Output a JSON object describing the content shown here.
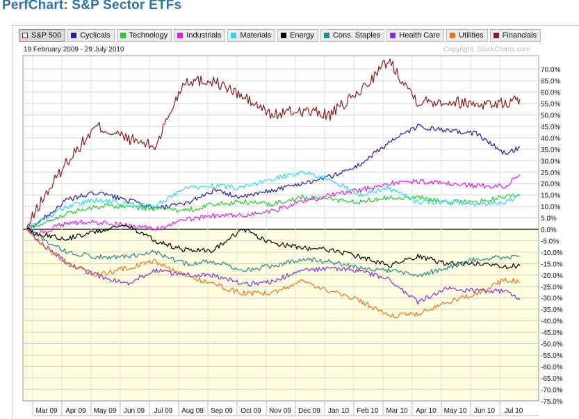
{
  "page": {
    "title": "PerfChart: S&P Sector ETFs"
  },
  "header": {
    "date_range": "19 February 2009 - 29 July 2010",
    "copyright": "Copyright, StockCharts.com"
  },
  "legend": [
    {
      "label": "S&P 500",
      "color": "#8b1a1a",
      "hollow": true,
      "active": true
    },
    {
      "label": "Cyclicals",
      "color": "#2a1aa8"
    },
    {
      "label": "Technology",
      "color": "#22cc22"
    },
    {
      "label": "Industrials",
      "color": "#e01be0"
    },
    {
      "label": "Materials",
      "color": "#22ddee"
    },
    {
      "label": "Energy",
      "color": "#000000"
    },
    {
      "label": "Cons. Staples",
      "color": "#1f8a8a"
    },
    {
      "label": "Health Care",
      "color": "#8a2be2"
    },
    {
      "label": "Utilities",
      "color": "#e8741a"
    },
    {
      "label": "Financials",
      "color": "#8b1a1a"
    }
  ],
  "chart_data": {
    "type": "line",
    "title": "PerfChart: S&P Sector ETFs",
    "subtitle": "19 February 2009 - 29 July 2010",
    "xlabel": "",
    "ylabel": "",
    "x_tick_labels": [
      "Mar 09",
      "Apr 09",
      "May 09",
      "Jun 09",
      "Jul 09",
      "Aug 09",
      "Sep 09",
      "Oct 09",
      "Nov 09",
      "Dec 09",
      "Jan 10",
      "Feb 10",
      "Mar 10",
      "Apr 10",
      "May 10",
      "Jun 10",
      "Jul 10"
    ],
    "y_tick_labels": [
      "70.0%",
      "65.0%",
      "60.0%",
      "55.0%",
      "50.0%",
      "45.0%",
      "40.0%",
      "35.0%",
      "30.0%",
      "25.0%",
      "20.0%",
      "15.0%",
      "10.0%",
      "5.0%",
      "0.0%",
      "-5.0%",
      "-10.0%",
      "-15.0%",
      "-20.0%",
      "-25.0%",
      "-30.0%",
      "-35.0%",
      "-40.0%",
      "-45.0%",
      "-50.0%",
      "-55.0%",
      "-60.0%",
      "-65.0%",
      "-70.0%",
      "-75.0%"
    ],
    "ylim": [
      -77,
      77
    ],
    "grid": true,
    "legend_position": "top",
    "x_months": [
      -0.4,
      0,
      1,
      2,
      3,
      4,
      5,
      6,
      7,
      8,
      9,
      10,
      11,
      12,
      13,
      14,
      15,
      16,
      16.5
    ],
    "series": [
      {
        "name": "Financials",
        "color": "#8b1a1a",
        "values": [
          0,
          10,
          30,
          45,
          40,
          36,
          65,
          65,
          58,
          50,
          52,
          50,
          60,
          74,
          56,
          56,
          55,
          55,
          57
        ]
      },
      {
        "name": "Cyclicals",
        "color": "#2a1aa8",
        "values": [
          0,
          3,
          13,
          16,
          13,
          9,
          11,
          17,
          14,
          17,
          20,
          23,
          28,
          38,
          45,
          43,
          42,
          33,
          36
        ]
      },
      {
        "name": "Technology",
        "color": "#22cc22",
        "values": [
          0,
          2,
          7,
          10,
          10,
          9,
          8,
          11,
          12,
          11,
          14,
          13,
          12,
          14,
          14,
          12,
          12,
          14,
          15
        ]
      },
      {
        "name": "Industrials",
        "color": "#e01be0",
        "values": [
          0,
          -2,
          3,
          3,
          2,
          0,
          4,
          6,
          6,
          8,
          12,
          15,
          17,
          20,
          21,
          20,
          19,
          19,
          24
        ]
      },
      {
        "name": "Materials",
        "color": "#22ddee",
        "values": [
          0,
          3,
          10,
          13,
          11,
          10,
          18,
          19,
          18,
          22,
          25,
          22,
          15,
          18,
          12,
          12,
          11,
          12,
          15
        ]
      },
      {
        "name": "Energy",
        "color": "#000000",
        "values": [
          0,
          -2,
          -4,
          -1,
          2,
          -5,
          -9,
          -9,
          0,
          -6,
          -8,
          -9,
          -12,
          -16,
          -12,
          -15,
          -15,
          -16,
          -16
        ]
      },
      {
        "name": "Cons. Staples",
        "color": "#1f8a8a",
        "values": [
          0,
          -3,
          -10,
          -12,
          -12,
          -10,
          -15,
          -14,
          -18,
          -16,
          -13,
          -14,
          -17,
          -18,
          -20,
          -17,
          -13,
          -12,
          -12
        ]
      },
      {
        "name": "Health Care",
        "color": "#8a2be2",
        "values": [
          0,
          -5,
          -15,
          -20,
          -24,
          -18,
          -20,
          -20,
          -24,
          -23,
          -18,
          -17,
          -18,
          -22,
          -32,
          -26,
          -27,
          -27,
          -31
        ]
      },
      {
        "name": "Utilities",
        "color": "#e8741a",
        "values": [
          0,
          -5,
          -15,
          -20,
          -17,
          -14,
          -20,
          -24,
          -28,
          -28,
          -23,
          -27,
          -31,
          -38,
          -37,
          -32,
          -28,
          -22,
          -23
        ]
      }
    ]
  }
}
